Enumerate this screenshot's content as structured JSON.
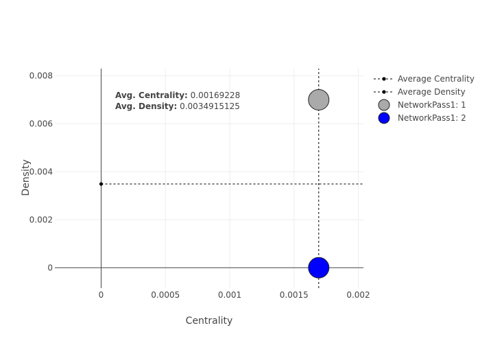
{
  "chart_data": {
    "type": "scatter",
    "xlabel": "Centrality",
    "ylabel": "Density",
    "xlim": [
      -0.00036,
      0.00204
    ],
    "ylim": [
      -0.00085,
      0.0083
    ],
    "x_ticks": [
      {
        "value": 0,
        "label": "0"
      },
      {
        "value": 0.0005,
        "label": "0.0005"
      },
      {
        "value": 0.001,
        "label": "0.001"
      },
      {
        "value": 0.0015,
        "label": "0.0015"
      },
      {
        "value": 0.002,
        "label": "0.002"
      }
    ],
    "y_ticks": [
      {
        "value": 0,
        "label": "0"
      },
      {
        "value": 0.002,
        "label": "0.002"
      },
      {
        "value": 0.004,
        "label": "0.004"
      },
      {
        "value": 0.006,
        "label": "0.006"
      },
      {
        "value": 0.008,
        "label": "0.008"
      }
    ],
    "grid": true,
    "legend_position": "right",
    "series": [
      {
        "name": "Average Centrality",
        "kind": "line",
        "dash": "dotted",
        "color": "#000000",
        "x": [
          0.00169228,
          0.00169228
        ],
        "y": [
          -0.00085,
          0.0083
        ]
      },
      {
        "name": "Average Density",
        "kind": "line",
        "dash": "dotted",
        "color": "#000000",
        "x": [
          0,
          0.00204
        ],
        "y": [
          0.0034915125,
          0.0034915125
        ]
      },
      {
        "name": "NetworkPass1: 1",
        "kind": "bubble",
        "color": "#aaaaaa",
        "x": [
          0.00169228
        ],
        "y": [
          0.007
        ]
      },
      {
        "name": "NetworkPass1: 2",
        "kind": "bubble",
        "color": "#0000ff",
        "x": [
          0.00169228
        ],
        "y": [
          0
        ]
      }
    ],
    "annotation": {
      "line1_label": "Avg. Centrality:",
      "line1_value": "0.00169228",
      "line2_label": "Avg. Density:",
      "line2_value": "0.0034915125"
    }
  }
}
